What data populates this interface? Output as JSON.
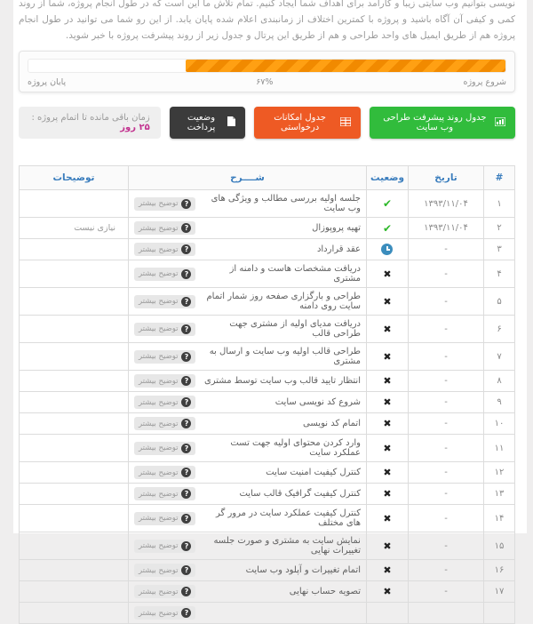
{
  "intro": {
    "text": "نویسی  بتوانیم وب سایتی زیبا و کارآمد برای اهداف شما ایجاد کنیم. تمام تلاش ما این است که در طول انجام پروژه، شما از روند کمی و کیفی آن آگاه باشید و پروژه با کمترین اختلاف از زمانبندی اعلام شده پایان یابد. از این رو شما می توانید در طول انجام پروژه هم از طریق ایمیل های واحد طراحی و هم از طریق این پرتال و جدول زیر از روند پیشرفت پروژه با خبر شوید."
  },
  "progress": {
    "percent": 67,
    "percent_label": "۶۷%",
    "start_label": "شروع پروژه",
    "end_label": "پایان پروژه"
  },
  "toolbar": {
    "progress_table_button": "جدول روند پیشرفت طراحی وب سایت",
    "features_table_button": "جدول امکانات درخواستی",
    "payment_status_button": "وضعیت پرداخت",
    "remaining_time_label": "زمان باقی مانده تا اتمام پروژه :",
    "remaining_time_value": "۲۵ روز"
  },
  "table": {
    "headers": {
      "row_number": "#",
      "date": "تاریخ",
      "status": "وضعیت",
      "description": "شــــرح",
      "notes": "توضیحات"
    },
    "more_info_label": "توضیح بیشتر",
    "more_info_icon": "?",
    "status_icons": {
      "done": "✔",
      "not_done": "✖",
      "pending": "clock"
    },
    "rows": [
      {
        "number": "۱",
        "date": "۱۳۹۳/۱۱/۰۴",
        "status": "done",
        "description": "جلسه اولیه بررسی مطالب و ویژگی های وب سایت",
        "notes": ""
      },
      {
        "number": "۲",
        "date": "۱۳۹۳/۱۱/۰۴",
        "status": "done",
        "description": "تهیه پروپوزال",
        "notes": "نیازی نیست"
      },
      {
        "number": "۳",
        "date": "-",
        "status": "pending",
        "description": "عقد قرارداد",
        "notes": ""
      },
      {
        "number": "۴",
        "date": "-",
        "status": "not_done",
        "description": "دریافت مشخصات هاست و دامنه از مشتری",
        "notes": ""
      },
      {
        "number": "۵",
        "date": "-",
        "status": "not_done",
        "description": "طراحی و بارگزاری صفحه روز شمار اتمام سایت روی دامنه",
        "notes": ""
      },
      {
        "number": "۶",
        "date": "-",
        "status": "not_done",
        "description": "دریافت مدیای اولیه از مشتری جهت طراحی قالب",
        "notes": ""
      },
      {
        "number": "۷",
        "date": "-",
        "status": "not_done",
        "description": "طراحی قالب اولیه وب سایت و ارسال به مشتری",
        "notes": ""
      },
      {
        "number": "۸",
        "date": "-",
        "status": "not_done",
        "description": "انتظار تایید قالب وب سایت توسط مشتری",
        "notes": ""
      },
      {
        "number": "۹",
        "date": "-",
        "status": "not_done",
        "description": "شروع کد نویسی سایت",
        "notes": ""
      },
      {
        "number": "۱۰",
        "date": "-",
        "status": "not_done",
        "description": "اتمام کد نویسی",
        "notes": ""
      },
      {
        "number": "۱۱",
        "date": "-",
        "status": "not_done",
        "description": "وارد کردن  محتوای اولیه جهت تست عملکرد سایت",
        "notes": ""
      },
      {
        "number": "۱۲",
        "date": "-",
        "status": "not_done",
        "description": "کنترل کیفیت امنیت سایت",
        "notes": ""
      },
      {
        "number": "۱۳",
        "date": "-",
        "status": "not_done",
        "description": "کنترل کیفیت گرافیک قالب سایت",
        "notes": ""
      },
      {
        "number": "۱۴",
        "date": "-",
        "status": "not_done",
        "description": "کنترل کیفیت عملکرد سایت در مرور گر های مختلف",
        "notes": ""
      },
      {
        "number": "۱۵",
        "date": "-",
        "status": "not_done",
        "description": "نمایش سایت به مشتری و صورت جلسه تغییرات نهایی",
        "notes": ""
      },
      {
        "number": "۱۶",
        "date": "-",
        "status": "not_done",
        "description": "اتمام تغییرات و آپلود وب سایت",
        "notes": ""
      },
      {
        "number": "۱۷",
        "date": "-",
        "status": "not_done",
        "description": "تصویه حساب نهایی",
        "notes": ""
      },
      {
        "number": "",
        "date": "",
        "status": "none",
        "description": "",
        "notes": ""
      }
    ]
  },
  "colors": {
    "progress_fill": "#ffa013",
    "progress_fill_stripe": "#f18a00",
    "button_green": "#31bc3c",
    "button_orange": "#ee5a24",
    "button_dark": "#3b3b3b",
    "header_blue": "#3a7dbd",
    "remaining_highlight": "#c2328f",
    "check_green": "#2eb82a",
    "clock_blue": "#3b8dbd"
  }
}
